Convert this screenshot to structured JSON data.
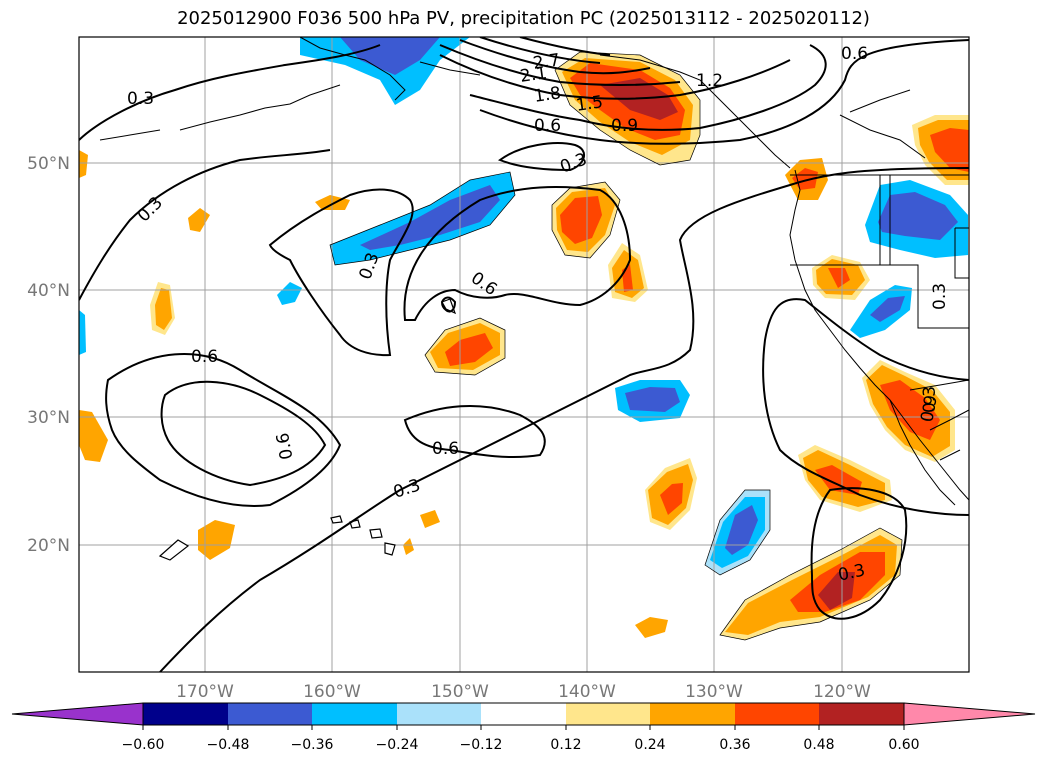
{
  "title": "2025012900 F036 500 hPa PV, precipitation PC (2025013112 - 2025020112)",
  "map": {
    "lon_labels": [
      "170°W",
      "160°W",
      "150°W",
      "140°W",
      "130°W",
      "120°W"
    ],
    "lat_labels": [
      "50°N",
      "40°N",
      "30°N",
      "20°N"
    ],
    "lon_range": [
      -180,
      -110
    ],
    "lat_range": [
      10,
      60
    ],
    "grid": true
  },
  "contour_labels": [
    {
      "text": "0.3"
    },
    {
      "text": "0.3"
    },
    {
      "text": "0.3"
    },
    {
      "text": "0.3"
    },
    {
      "text": "0.3"
    },
    {
      "text": "0.3"
    },
    {
      "text": "0.3"
    },
    {
      "text": "0.3"
    },
    {
      "text": "0.6"
    },
    {
      "text": "0.6"
    },
    {
      "text": "0.6"
    },
    {
      "text": "0.6"
    },
    {
      "text": "0.6"
    },
    {
      "text": "0.6"
    },
    {
      "text": "0.9"
    },
    {
      "text": "0.9"
    },
    {
      "text": "1.5"
    },
    {
      "text": "1.8"
    },
    {
      "text": "2.1"
    },
    {
      "text": "2.7"
    },
    {
      "text": "1.2"
    }
  ],
  "colorbar": {
    "ticks": [
      "−0.60",
      "−0.48",
      "−0.36",
      "−0.24",
      "−0.12",
      "0.12",
      "0.24",
      "0.36",
      "0.48",
      "0.60"
    ],
    "colors": [
      "#9932cc",
      "#00008b",
      "#3c5ad2",
      "#00bfff",
      "#aae1fa",
      "#ffffff",
      "#ffe68c",
      "#ffa500",
      "#ff4500",
      "#b22222",
      "#ff88aa"
    ]
  },
  "fill_colors": {
    "neg_light": "#aae1fa",
    "neg_mid": "#00bfff",
    "neg_strong": "#3c5ad2",
    "pos_light": "#ffe68c",
    "pos_mid": "#ffa500",
    "pos_strong": "#ff4500",
    "pos_max": "#b22222"
  }
}
